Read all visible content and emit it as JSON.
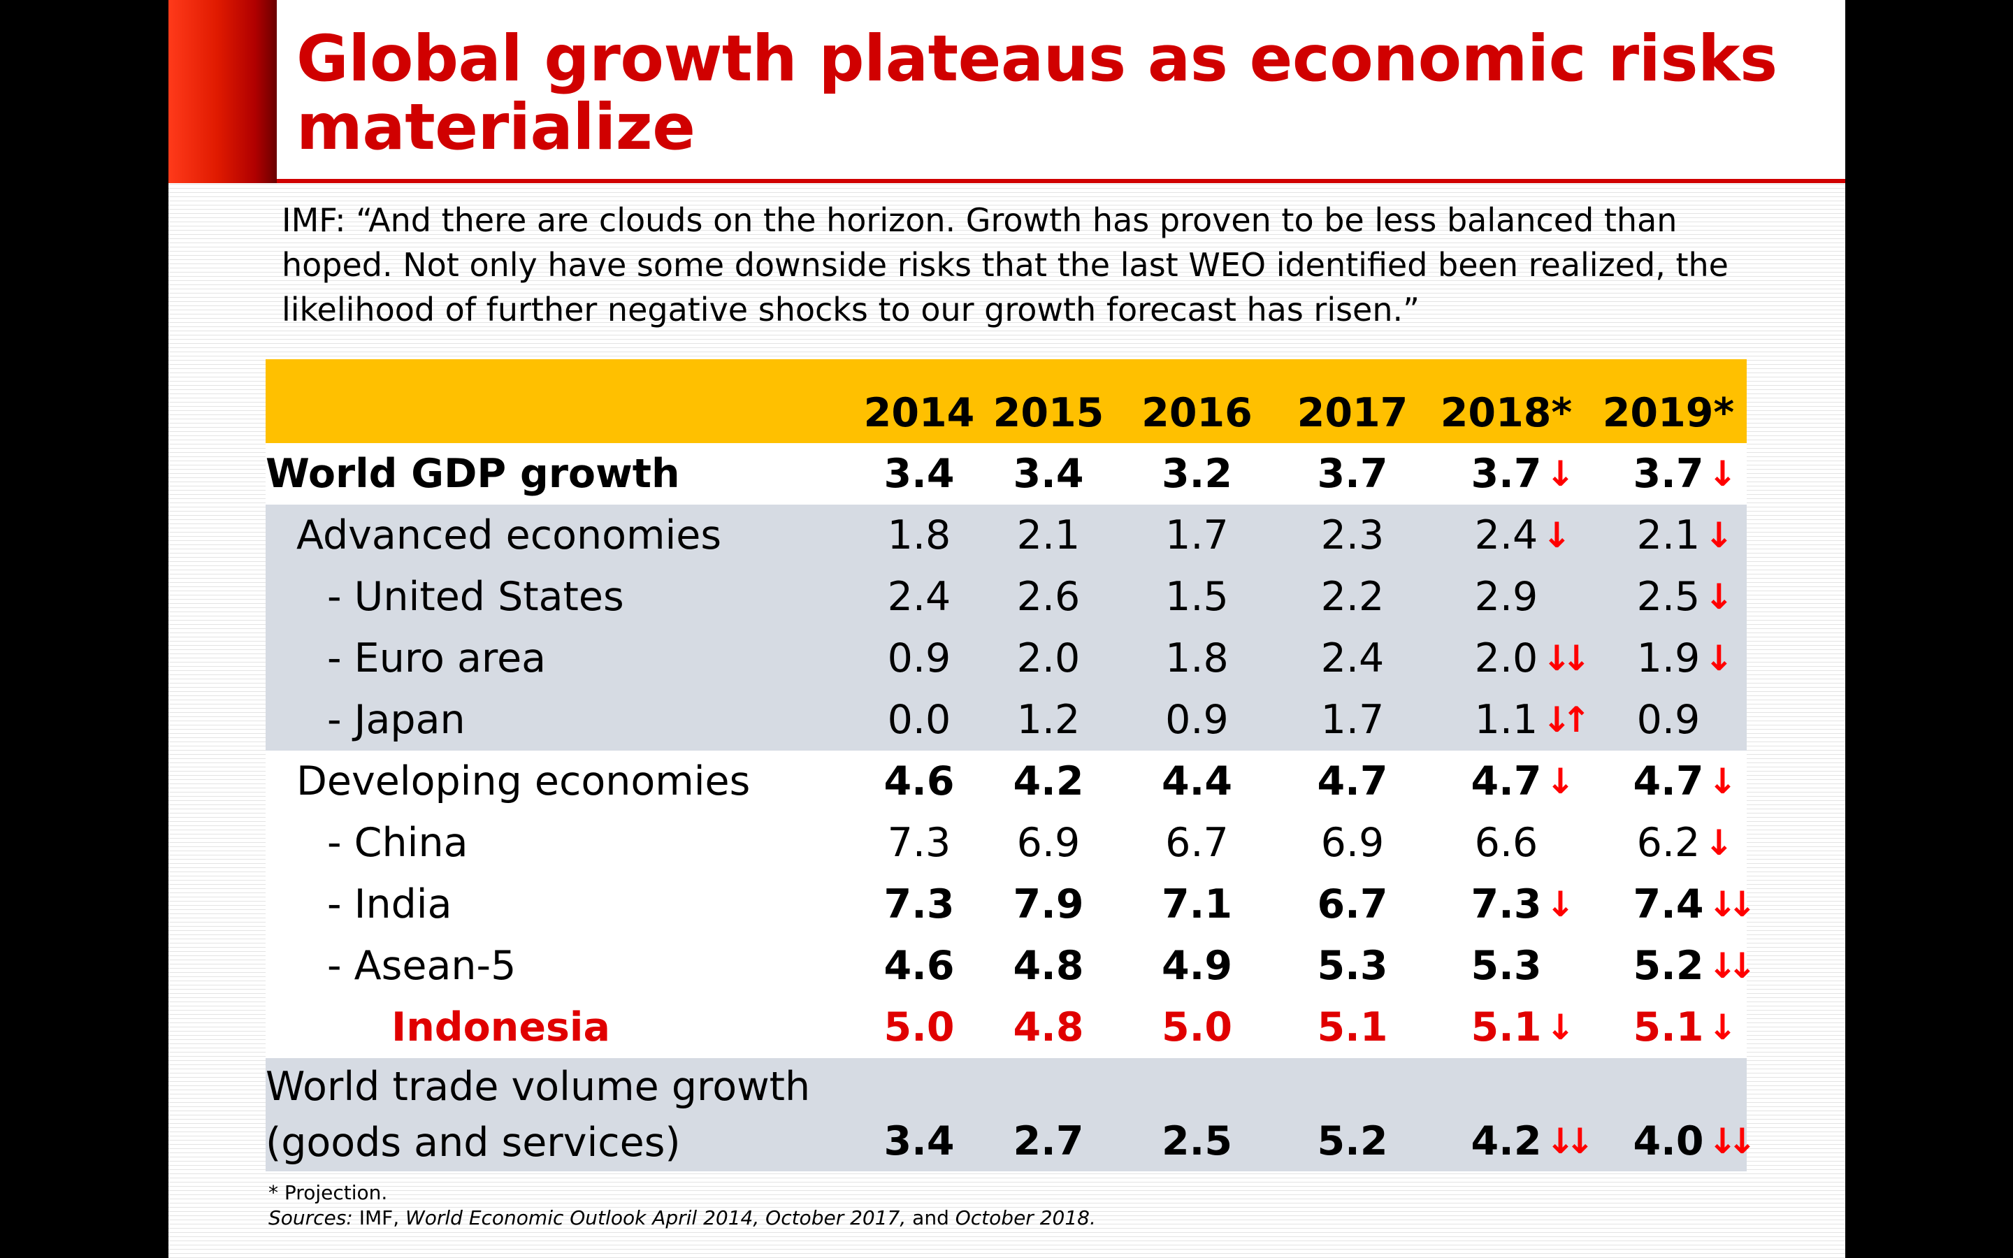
{
  "title": "Global growth plateaus as economic risks materialize",
  "quote": "IMF: “And there are clouds on the horizon. Growth has proven to be less balanced than hoped. Not only have some downside risks that the last WEO identified been realized, the likelihood of further negative shocks to our growth forecast has risen.”",
  "table": {
    "headers": [
      "2014",
      "2015",
      "2016",
      "2017",
      "2018*",
      "2019*"
    ],
    "rows": [
      {
        "label": "World GDP growth",
        "values": [
          "3.4",
          "3.4",
          "3.2",
          "3.7",
          "3.7",
          "3.7"
        ],
        "arrows": [
          "",
          "",
          "",
          "",
          "↓",
          "↓"
        ]
      },
      {
        "label": "Advanced economies",
        "values": [
          "1.8",
          "2.1",
          "1.7",
          "2.3",
          "2.4",
          "2.1"
        ],
        "arrows": [
          "",
          "",
          "",
          "",
          "↓",
          "↓"
        ]
      },
      {
        "label": "- United States",
        "values": [
          "2.4",
          "2.6",
          "1.5",
          "2.2",
          "2.9",
          "2.5"
        ],
        "arrows": [
          "",
          "",
          "",
          "",
          "",
          "↓"
        ]
      },
      {
        "label": "- Euro area",
        "values": [
          "0.9",
          "2.0",
          "1.8",
          "2.4",
          "2.0",
          "1.9"
        ],
        "arrows": [
          "",
          "",
          "",
          "",
          "↓↓",
          "↓"
        ]
      },
      {
        "label": "- Japan",
        "values": [
          "0.0",
          "1.2",
          "0.9",
          "1.7",
          "1.1",
          "0.9"
        ],
        "arrows": [
          "",
          "",
          "",
          "",
          "↓↑",
          ""
        ]
      },
      {
        "label": "Developing economies",
        "values": [
          "4.6",
          "4.2",
          "4.4",
          "4.7",
          "4.7",
          "4.7"
        ],
        "arrows": [
          "",
          "",
          "",
          "",
          "↓",
          "↓"
        ]
      },
      {
        "label": "- China",
        "values": [
          "7.3",
          "6.9",
          "6.7",
          "6.9",
          "6.6",
          "6.2"
        ],
        "arrows": [
          "",
          "",
          "",
          "",
          "",
          "↓"
        ]
      },
      {
        "label": "- India",
        "values": [
          "7.3",
          "7.9",
          "7.1",
          "6.7",
          "7.3",
          "7.4"
        ],
        "arrows": [
          "",
          "",
          "",
          "",
          "↓",
          "↓↓"
        ]
      },
      {
        "label": "- Asean-5",
        "values": [
          "4.6",
          "4.8",
          "4.9",
          "5.3",
          "5.3",
          "5.2"
        ],
        "arrows": [
          "",
          "",
          "",
          "",
          "",
          "↓↓"
        ]
      },
      {
        "label": "Indonesia",
        "values": [
          "5.0",
          "4.8",
          "5.0",
          "5.1",
          "5.1",
          "5.1"
        ],
        "arrows": [
          "",
          "",
          "",
          "",
          "↓",
          "↓"
        ]
      },
      {
        "label_line1": "World trade volume growth",
        "label_line2": "(goods and services)",
        "values": [
          "3.4",
          "2.7",
          "2.5",
          "5.2",
          "4.2",
          "4.0"
        ],
        "arrows": [
          "",
          "",
          "",
          "",
          "↓↓",
          "↓↓"
        ]
      }
    ]
  },
  "footnote": "* Projection.",
  "sources": {
    "prefix": "Sources:",
    "org": " IMF, ",
    "publication": "World Economic Outlook April 2014, October 2017,",
    "and": " and ",
    "last": "October 2018."
  },
  "colors": {
    "title_red": "#d00000",
    "header_gold": "#ffc000",
    "row_gray": "#d6dbe3",
    "arrow_red": "#ff0000"
  }
}
